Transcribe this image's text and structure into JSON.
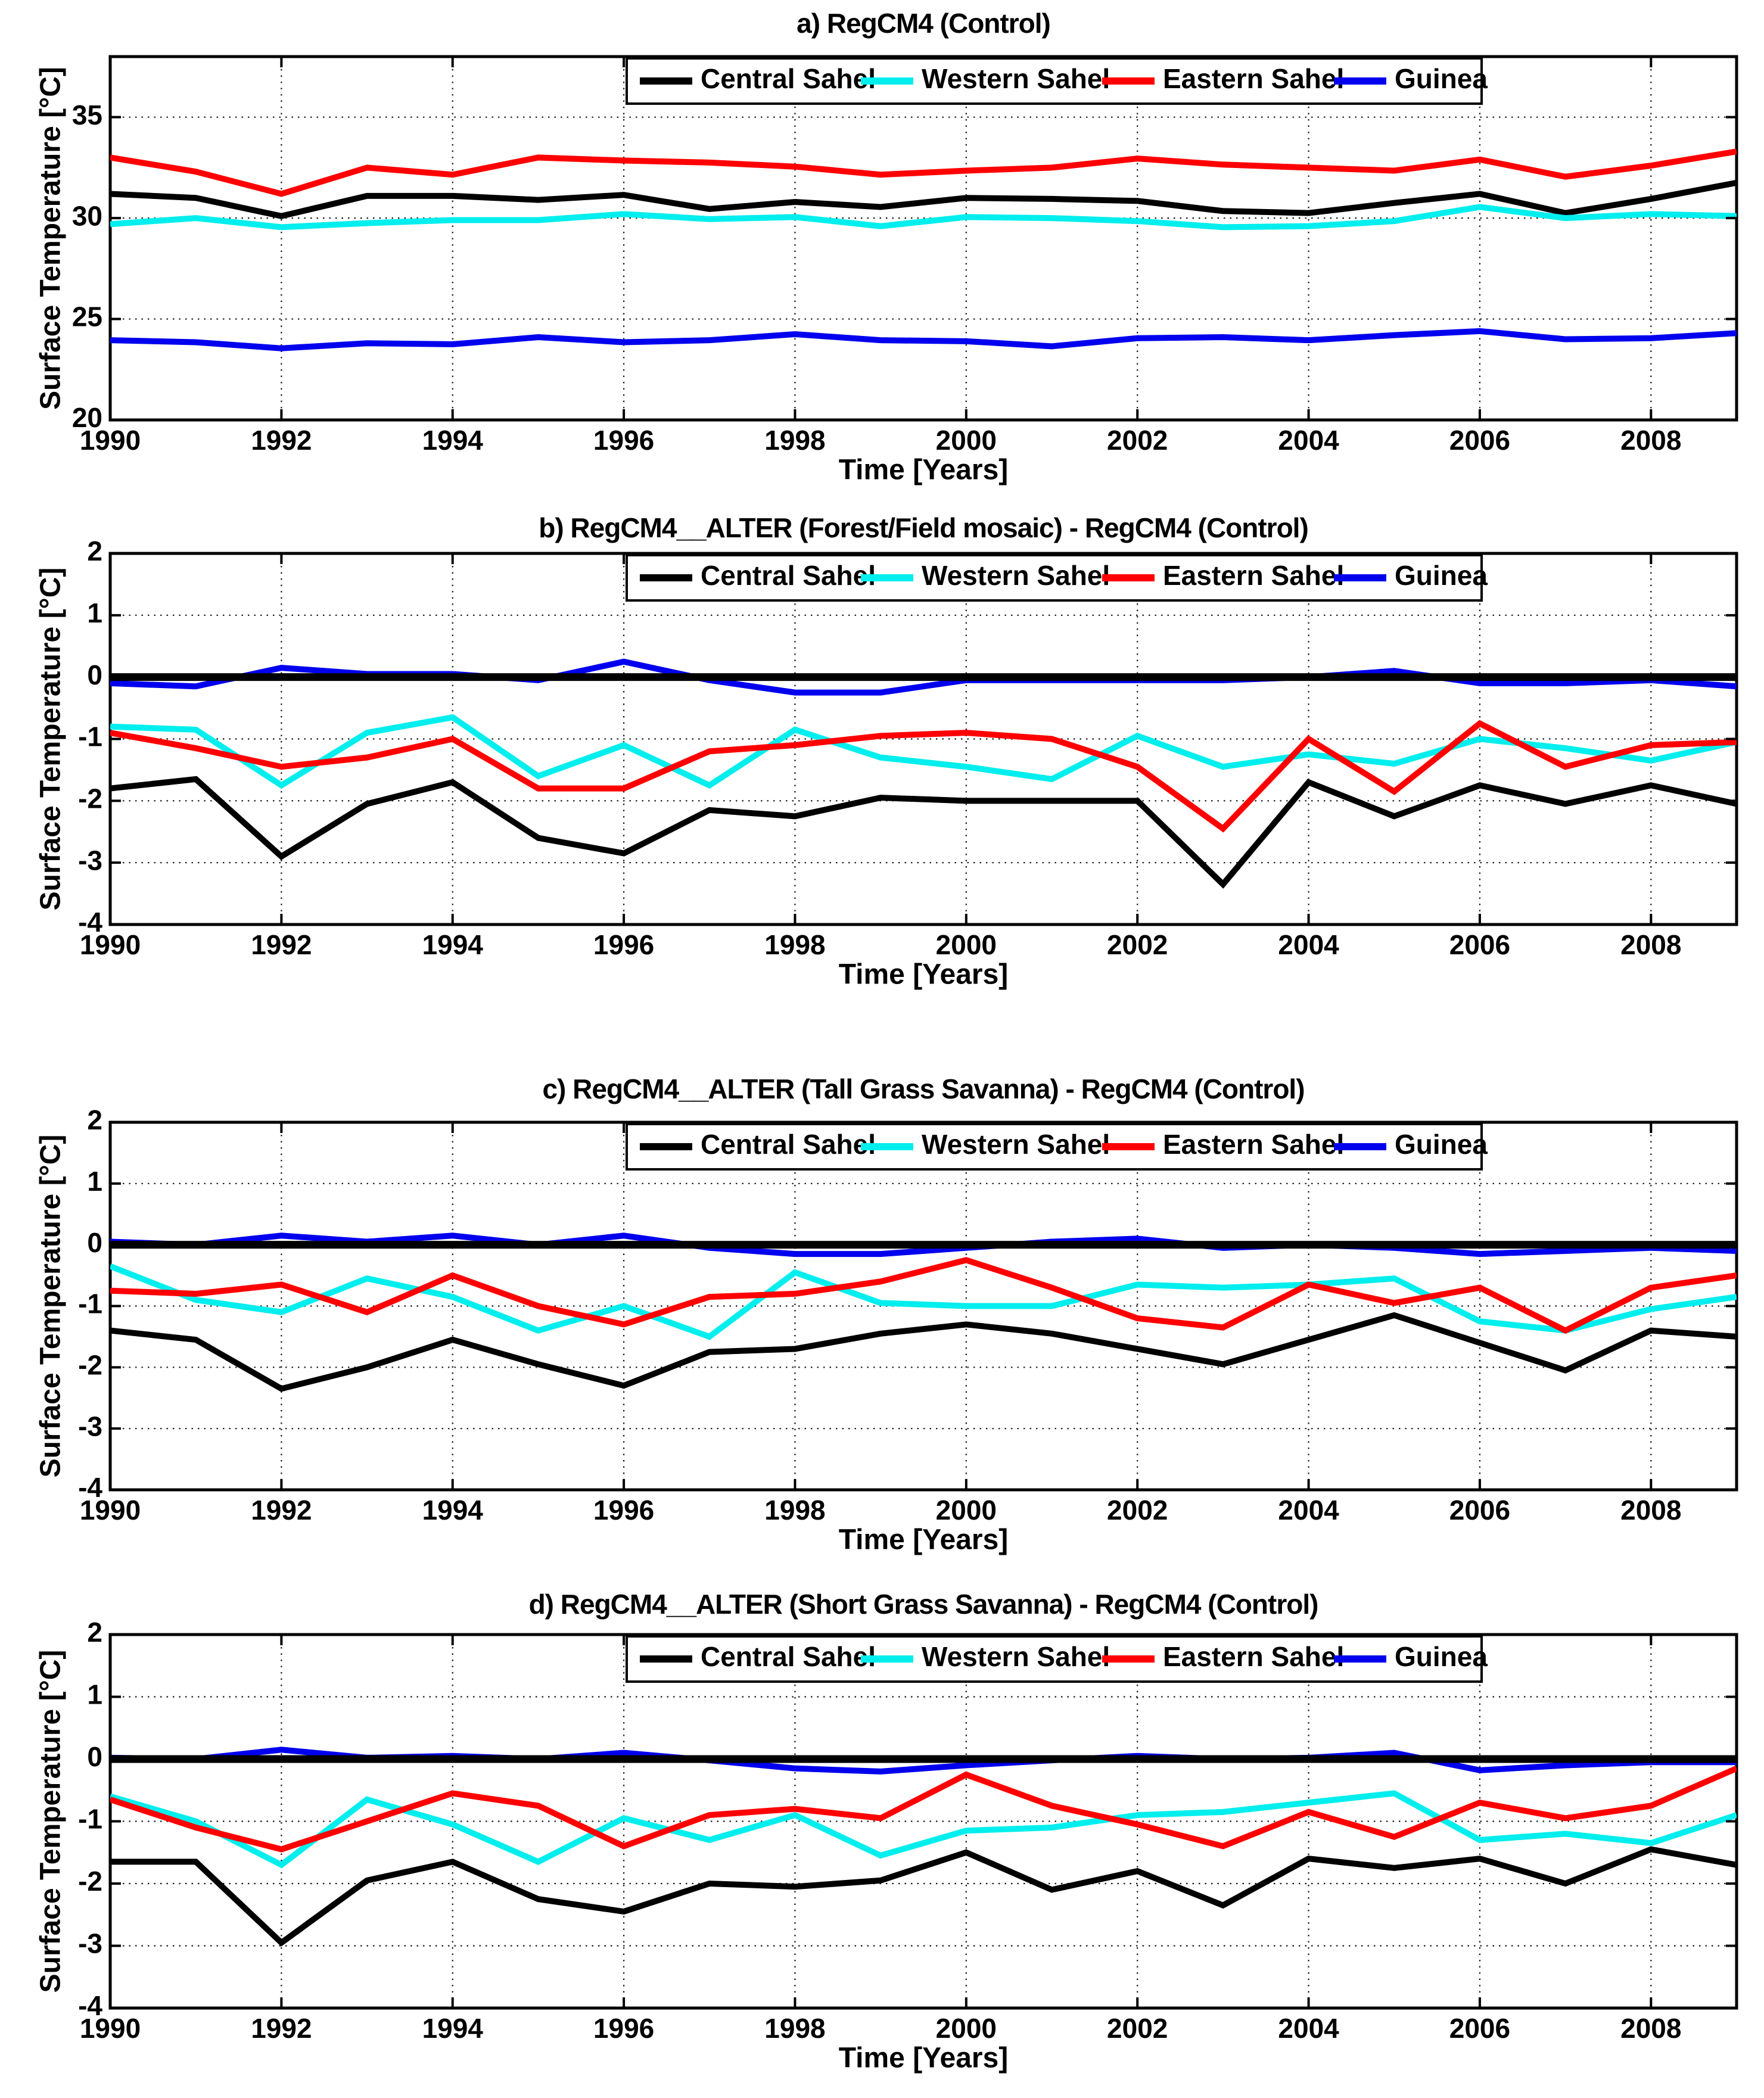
{
  "figure": {
    "xlabel": "Time [Years]",
    "ylabel": "Surface Temperature [°C]",
    "legend": [
      "Central Sahel",
      "Western Sahel",
      "Eastern Sahel",
      "Guinea"
    ],
    "series_colors": {
      "central": "#000000",
      "western": "#00eeee",
      "eastern": "#ff0000",
      "guinea": "#0000ee"
    },
    "xticks": [
      1990,
      1992,
      1994,
      1996,
      1998,
      2000,
      2002,
      2004,
      2006,
      2008
    ],
    "grid": "dotted"
  },
  "chart_data": [
    {
      "type": "line",
      "title": "a) RegCM4 (Control)",
      "xlabel": "Time [Years]",
      "ylabel": "Surface Temperature [°C]",
      "x": [
        1990,
        1991,
        1992,
        1993,
        1994,
        1995,
        1996,
        1997,
        1998,
        1999,
        2000,
        2001,
        2002,
        2003,
        2004,
        2005,
        2006,
        2007,
        2008,
        2009
      ],
      "ylim": [
        20,
        38
      ],
      "yticks": [
        20,
        25,
        30,
        35
      ],
      "zero_line": false,
      "legend_position": "top-inside",
      "series": [
        {
          "name": "Central Sahel",
          "color": "#000000",
          "values": [
            31.2,
            31.0,
            30.1,
            31.1,
            31.1,
            30.9,
            31.15,
            30.45,
            30.8,
            30.55,
            31.0,
            30.95,
            30.85,
            30.35,
            30.25,
            30.75,
            31.2,
            30.25,
            30.95,
            31.75
          ]
        },
        {
          "name": "Western Sahel",
          "color": "#00eeee",
          "values": [
            29.7,
            30.0,
            29.55,
            29.75,
            29.9,
            29.9,
            30.2,
            29.95,
            30.05,
            29.6,
            30.05,
            30.0,
            29.85,
            29.55,
            29.6,
            29.85,
            30.55,
            30.0,
            30.2,
            30.1
          ]
        },
        {
          "name": "Eastern Sahel",
          "color": "#ff0000",
          "values": [
            33.0,
            32.3,
            31.2,
            32.5,
            32.15,
            33.0,
            32.85,
            32.75,
            32.55,
            32.15,
            32.35,
            32.5,
            32.95,
            32.65,
            32.5,
            32.35,
            32.9,
            32.05,
            32.6,
            33.3
          ]
        },
        {
          "name": "Guinea",
          "color": "#0000ee",
          "values": [
            23.95,
            23.85,
            23.55,
            23.8,
            23.75,
            24.1,
            23.85,
            23.95,
            24.25,
            23.95,
            23.9,
            23.65,
            24.05,
            24.1,
            23.95,
            24.2,
            24.4,
            24.0,
            24.05,
            24.3
          ]
        }
      ]
    },
    {
      "type": "line",
      "title": "b) RegCM4__ALTER (Forest/Field mosaic) - RegCM4 (Control)",
      "xlabel": "Time [Years]",
      "ylabel": "Surface Temperature [°C]",
      "x": [
        1990,
        1991,
        1992,
        1993,
        1994,
        1995,
        1996,
        1997,
        1998,
        1999,
        2000,
        2001,
        2002,
        2003,
        2004,
        2005,
        2006,
        2007,
        2008,
        2009
      ],
      "ylim": [
        -4,
        2
      ],
      "yticks": [
        -4,
        -3,
        -2,
        -1,
        0,
        1,
        2
      ],
      "zero_line": true,
      "legend_position": "top-inside",
      "series": [
        {
          "name": "Central Sahel",
          "color": "#000000",
          "values": [
            -1.8,
            -1.65,
            -2.9,
            -2.05,
            -1.7,
            -2.6,
            -2.85,
            -2.15,
            -2.25,
            -1.95,
            -2.0,
            -2.0,
            -2.0,
            -3.35,
            -1.7,
            -2.25,
            -1.75,
            -2.05,
            -1.75,
            -2.05
          ]
        },
        {
          "name": "Western Sahel",
          "color": "#00eeee",
          "values": [
            -0.8,
            -0.85,
            -1.75,
            -0.9,
            -0.65,
            -1.6,
            -1.1,
            -1.75,
            -0.85,
            -1.3,
            -1.45,
            -1.65,
            -0.95,
            -1.45,
            -1.25,
            -1.4,
            -1.0,
            -1.15,
            -1.35,
            -1.05
          ]
        },
        {
          "name": "Eastern Sahel",
          "color": "#ff0000",
          "values": [
            -0.9,
            -1.15,
            -1.45,
            -1.3,
            -1.0,
            -1.8,
            -1.8,
            -1.2,
            -1.1,
            -0.95,
            -0.9,
            -1.0,
            -1.45,
            -2.45,
            -1.0,
            -1.85,
            -0.75,
            -1.45,
            -1.1,
            -1.05
          ]
        },
        {
          "name": "Guinea",
          "color": "#0000ee",
          "values": [
            -0.1,
            -0.15,
            0.15,
            0.05,
            0.05,
            -0.05,
            0.25,
            -0.05,
            -0.25,
            -0.25,
            -0.05,
            -0.05,
            -0.05,
            -0.05,
            0.0,
            0.1,
            -0.1,
            -0.1,
            -0.05,
            -0.15
          ]
        }
      ]
    },
    {
      "type": "line",
      "title": "c) RegCM4__ALTER (Tall Grass Savanna) - RegCM4 (Control)",
      "xlabel": "Time [Years]",
      "ylabel": "Surface Temperature [°C]",
      "x": [
        1990,
        1991,
        1992,
        1993,
        1994,
        1995,
        1996,
        1997,
        1998,
        1999,
        2000,
        2001,
        2002,
        2003,
        2004,
        2005,
        2006,
        2007,
        2008,
        2009
      ],
      "ylim": [
        -4,
        2
      ],
      "yticks": [
        -4,
        -3,
        -2,
        -1,
        0,
        1,
        2
      ],
      "zero_line": true,
      "legend_position": "top-inside",
      "series": [
        {
          "name": "Central Sahel",
          "color": "#000000",
          "values": [
            -1.4,
            -1.55,
            -2.35,
            -2.0,
            -1.55,
            -1.95,
            -2.3,
            -1.75,
            -1.7,
            -1.45,
            -1.3,
            -1.45,
            -1.7,
            -1.95,
            -1.55,
            -1.15,
            -1.6,
            -2.05,
            -1.4,
            -1.5
          ]
        },
        {
          "name": "Western Sahel",
          "color": "#00eeee",
          "values": [
            -0.35,
            -0.9,
            -1.1,
            -0.55,
            -0.85,
            -1.4,
            -1.0,
            -1.5,
            -0.45,
            -0.95,
            -1.0,
            -1.0,
            -0.65,
            -0.7,
            -0.65,
            -0.55,
            -1.25,
            -1.4,
            -1.05,
            -0.85
          ]
        },
        {
          "name": "Eastern Sahel",
          "color": "#ff0000",
          "values": [
            -0.75,
            -0.8,
            -0.65,
            -1.1,
            -0.5,
            -1.0,
            -1.3,
            -0.85,
            -0.8,
            -0.6,
            -0.25,
            -0.7,
            -1.2,
            -1.35,
            -0.65,
            -0.95,
            -0.7,
            -1.4,
            -0.7,
            -0.5
          ]
        },
        {
          "name": "Guinea",
          "color": "#0000ee",
          "values": [
            0.05,
            0.0,
            0.15,
            0.05,
            0.15,
            0.0,
            0.15,
            -0.05,
            -0.15,
            -0.15,
            -0.05,
            0.05,
            0.1,
            -0.05,
            0.0,
            -0.05,
            -0.15,
            -0.1,
            -0.05,
            -0.1
          ]
        }
      ]
    },
    {
      "type": "line",
      "title": "d) RegCM4__ALTER (Short Grass Savanna) - RegCM4 (Control)",
      "xlabel": "Time [Years]",
      "ylabel": "Surface Temperature [°C]",
      "x": [
        1990,
        1991,
        1992,
        1993,
        1994,
        1995,
        1996,
        1997,
        1998,
        1999,
        2000,
        2001,
        2002,
        2003,
        2004,
        2005,
        2006,
        2007,
        2008,
        2009
      ],
      "ylim": [
        -4,
        2
      ],
      "yticks": [
        -4,
        -3,
        -2,
        -1,
        0,
        1,
        2
      ],
      "zero_line": true,
      "legend_position": "top-inside",
      "series": [
        {
          "name": "Central Sahel",
          "color": "#000000",
          "values": [
            -1.65,
            -1.65,
            -2.95,
            -1.95,
            -1.65,
            -2.25,
            -2.45,
            -2.0,
            -2.05,
            -1.95,
            -1.5,
            -2.1,
            -1.8,
            -2.35,
            -1.6,
            -1.75,
            -1.6,
            -2.0,
            -1.45,
            -1.7
          ]
        },
        {
          "name": "Western Sahel",
          "color": "#00eeee",
          "values": [
            -0.6,
            -1.0,
            -1.7,
            -0.65,
            -1.05,
            -1.65,
            -0.95,
            -1.3,
            -0.9,
            -1.55,
            -1.15,
            -1.1,
            -0.9,
            -0.85,
            -0.7,
            -0.55,
            -1.3,
            -1.2,
            -1.35,
            -0.9
          ]
        },
        {
          "name": "Eastern Sahel",
          "color": "#ff0000",
          "values": [
            -0.65,
            -1.1,
            -1.45,
            -1.0,
            -0.55,
            -0.75,
            -1.4,
            -0.9,
            -0.8,
            -0.95,
            -0.25,
            -0.75,
            -1.05,
            -1.4,
            -0.85,
            -1.25,
            -0.7,
            -0.95,
            -0.75,
            -0.15
          ]
        },
        {
          "name": "Guinea",
          "color": "#0000ee",
          "values": [
            0.02,
            0.0,
            0.15,
            0.02,
            0.05,
            0.0,
            0.1,
            -0.02,
            -0.15,
            -0.2,
            -0.1,
            -0.02,
            0.05,
            0.0,
            0.02,
            0.1,
            -0.18,
            -0.1,
            -0.05,
            -0.05
          ]
        }
      ]
    }
  ]
}
